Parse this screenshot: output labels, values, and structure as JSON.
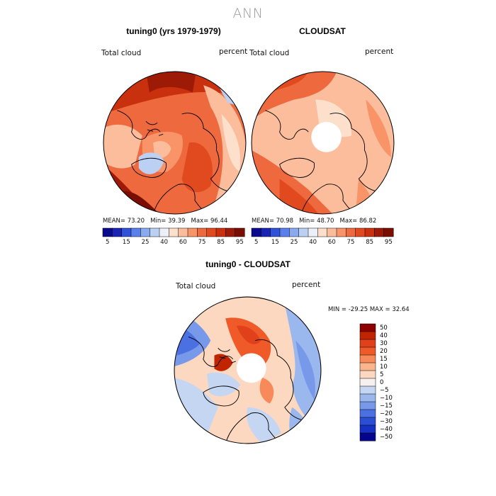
{
  "page": {
    "title": "ANN"
  },
  "panels": [
    {
      "title": "tuning0 (yrs 1979-1979)",
      "left_label": "Total cloud",
      "right_label": "percent",
      "stats": {
        "mean_label": "MEAN=",
        "mean": "73.20",
        "min_label": "Min=",
        "min": "39.39",
        "max_label": "Max=",
        "max": "96.44"
      }
    },
    {
      "title": "CLOUDSAT",
      "left_label": "Total cloud",
      "right_label": "percent",
      "stats": {
        "mean_label": "MEAN=",
        "mean": "70.98",
        "min_label": "Min=",
        "min": "48.70",
        "max_label": "Max=",
        "max": "86.82"
      }
    },
    {
      "title": "tuning0 - CLOUDSAT",
      "left_label": "Total cloud",
      "right_label": "percent",
      "stats": {
        "text": "MIN = -29.25 MAX =  32.64"
      }
    }
  ],
  "colorbar_abs": {
    "colors": [
      "#0a0a8c",
      "#1a24b4",
      "#2f52d8",
      "#5a80ea",
      "#8aaaf0",
      "#bcd0f4",
      "#ecf0f8",
      "#fde0cc",
      "#fbbd9c",
      "#f89468",
      "#ee6a3e",
      "#e04a1e",
      "#c8300e",
      "#9c1a06",
      "#7a0e02"
    ],
    "ticks": [
      "5",
      "15",
      "25",
      "40",
      "60",
      "75",
      "85",
      "95"
    ]
  },
  "colorbar_diff": {
    "colors": [
      "#8c0000",
      "#c02400",
      "#e0401a",
      "#f05a28",
      "#f7895a",
      "#fbb58c",
      "#fdd8c0",
      "#f6f1ee",
      "#c4d6f2",
      "#9ab8ee",
      "#7898ea",
      "#4a70e2",
      "#2a4ed4",
      "#1630c4",
      "#04048c"
    ],
    "ticks": [
      "50",
      "40",
      "30",
      "20",
      "15",
      "10",
      "5",
      "0",
      "−5",
      "−10",
      "−15",
      "−20",
      "−30",
      "−40",
      "−50"
    ]
  }
}
